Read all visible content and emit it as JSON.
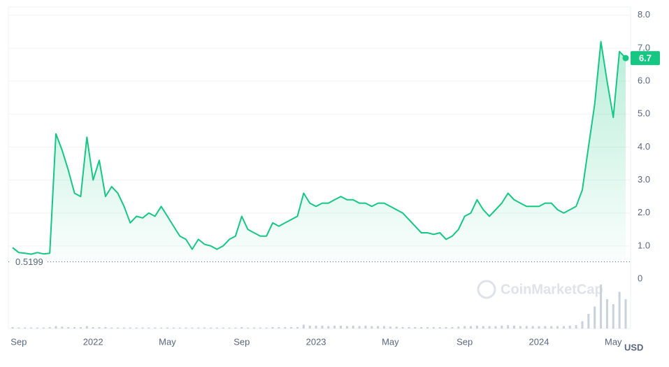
{
  "chart_data": {
    "type": "line",
    "categories": [
      null,
      "Sep",
      null,
      null,
      null,
      null,
      null,
      null,
      null,
      null,
      null,
      null,
      null,
      "2022",
      null,
      null,
      null,
      null,
      null,
      null,
      null,
      null,
      null,
      null,
      null,
      "May",
      null,
      null,
      null,
      null,
      null,
      null,
      null,
      null,
      null,
      null,
      null,
      "Sep",
      null,
      null,
      null,
      null,
      null,
      null,
      null,
      null,
      null,
      null,
      null,
      "2023",
      null,
      null,
      null,
      null,
      null,
      null,
      null,
      null,
      null,
      null,
      null,
      "May",
      null,
      null,
      null,
      null,
      null,
      null,
      null,
      null,
      null,
      null,
      null,
      "Sep",
      null,
      null,
      null,
      null,
      null,
      null,
      null,
      null,
      null,
      null,
      null,
      "2024",
      null,
      null,
      null,
      null,
      null,
      null,
      null,
      null,
      null,
      null,
      null,
      "May",
      null,
      null
    ],
    "values": [
      0.95,
      0.8,
      0.78,
      0.75,
      0.8,
      0.76,
      0.78,
      4.4,
      3.9,
      3.3,
      2.6,
      2.5,
      4.3,
      3.0,
      3.6,
      2.5,
      2.8,
      2.6,
      2.2,
      1.7,
      1.9,
      1.85,
      2.0,
      1.9,
      2.2,
      1.9,
      1.6,
      1.3,
      1.2,
      0.9,
      1.2,
      1.05,
      1.0,
      0.9,
      1.0,
      1.2,
      1.3,
      1.9,
      1.5,
      1.4,
      1.3,
      1.3,
      1.7,
      1.6,
      1.7,
      1.8,
      1.9,
      2.6,
      2.3,
      2.2,
      2.3,
      2.3,
      2.4,
      2.5,
      2.4,
      2.4,
      2.3,
      2.3,
      2.2,
      2.3,
      2.3,
      2.2,
      2.1,
      2.0,
      1.8,
      1.6,
      1.4,
      1.4,
      1.35,
      1.4,
      1.2,
      1.3,
      1.5,
      1.9,
      2.0,
      2.4,
      2.1,
      1.9,
      2.1,
      2.3,
      2.6,
      2.4,
      2.3,
      2.2,
      2.2,
      2.2,
      2.3,
      2.3,
      2.1,
      2.0,
      2.1,
      2.2,
      2.7,
      4.0,
      5.3,
      7.2,
      6.0,
      4.9,
      6.9,
      6.7
    ],
    "color": "#16c784",
    "ylim": [
      0,
      8.25
    ],
    "yticks": [
      {
        "value": 1,
        "label": "1.0"
      },
      {
        "value": 2,
        "label": "2.0"
      },
      {
        "value": 3,
        "label": "3.0"
      },
      {
        "value": 4,
        "label": "4.0"
      },
      {
        "value": 5,
        "label": "5.0"
      },
      {
        "value": 6,
        "label": "6.0"
      },
      {
        "value": 7,
        "label": "7.0"
      },
      {
        "value": 8,
        "label": "8.0"
      }
    ],
    "grid": true,
    "min_line": 0.5199,
    "volume": [
      0.3,
      0.2,
      0.2,
      0.2,
      0.2,
      0.2,
      0.3,
      0.5,
      0.4,
      0.3,
      0.3,
      0.3,
      0.5,
      0.3,
      0.3,
      0.3,
      0.2,
      0.2,
      0.2,
      0.2,
      0.2,
      0.2,
      0.2,
      0.2,
      0.2,
      0.2,
      0.2,
      0.2,
      0.2,
      0.2,
      0.2,
      0.2,
      0.2,
      0.2,
      0.2,
      0.2,
      0.2,
      0.3,
      0.2,
      0.2,
      0.2,
      0.2,
      0.3,
      0.3,
      0.3,
      0.3,
      0.3,
      0.8,
      0.6,
      0.6,
      0.6,
      0.5,
      0.6,
      0.6,
      0.5,
      0.6,
      0.5,
      0.6,
      0.5,
      0.5,
      0.5,
      0.4,
      0.4,
      0.3,
      0.3,
      0.3,
      0.3,
      0.3,
      0.3,
      0.3,
      0.3,
      0.3,
      0.4,
      0.5,
      0.5,
      0.6,
      0.5,
      0.5,
      0.5,
      0.6,
      0.7,
      0.6,
      0.5,
      0.5,
      0.5,
      0.5,
      0.5,
      0.5,
      0.5,
      0.5,
      0.6,
      0.7,
      1.5,
      3.0,
      4.5,
      9.0,
      6.0,
      5.0,
      7.5,
      6.0
    ],
    "volume_ylim": [
      0,
      10
    ],
    "volume_axis_label": "0",
    "currency": "USD",
    "watermark": "CoinMarketCap"
  }
}
